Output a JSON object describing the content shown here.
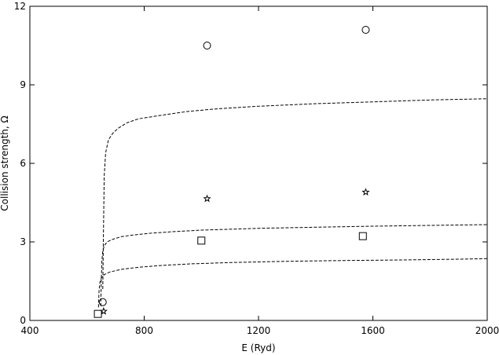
{
  "chart_data": {
    "type": "scatter",
    "title": "",
    "xlabel": "E (Ryd)",
    "ylabel": "Collision strength, Ω",
    "xlim": [
      400,
      2000
    ],
    "ylim": [
      0,
      12
    ],
    "x_ticks": [
      400,
      800,
      1200,
      1600,
      2000
    ],
    "y_ticks": [
      0,
      3,
      6,
      9,
      12
    ],
    "x_tick_labels": [
      "400",
      "800",
      "1200",
      "1600",
      "2000"
    ],
    "y_tick_labels": [
      "0",
      "3",
      "6",
      "9",
      "12"
    ],
    "grid": false,
    "legend": "none",
    "line_style": "dashed",
    "line_color": "#000000",
    "marker_color": "#000000",
    "curves": [
      {
        "x": [
          655,
          657,
          660,
          665,
          675,
          690,
          710,
          740,
          780,
          850,
          950,
          1050,
          1200,
          1400,
          1600,
          1800,
          2000
        ],
        "y": [
          1.2,
          3.0,
          5.5,
          6.4,
          6.9,
          7.15,
          7.35,
          7.55,
          7.7,
          7.82,
          7.98,
          8.08,
          8.18,
          8.28,
          8.35,
          8.42,
          8.47
        ]
      },
      {
        "x": [
          648,
          650,
          652,
          655,
          660,
          670,
          690,
          720,
          760,
          820,
          900,
          1000,
          1200,
          1400,
          1600,
          1800,
          2000
        ],
        "y": [
          0.55,
          1.5,
          2.3,
          2.65,
          2.85,
          3.0,
          3.1,
          3.2,
          3.26,
          3.33,
          3.39,
          3.45,
          3.52,
          3.56,
          3.6,
          3.63,
          3.66
        ]
      },
      {
        "x": [
          640,
          642,
          645,
          650,
          660,
          680,
          720,
          780,
          860,
          960,
          1100,
          1300,
          1500,
          1700,
          1900,
          2000
        ],
        "y": [
          0.5,
          1.1,
          1.45,
          1.62,
          1.75,
          1.85,
          1.95,
          2.03,
          2.1,
          2.16,
          2.21,
          2.26,
          2.29,
          2.31,
          2.34,
          2.36
        ]
      }
    ],
    "markers": [
      {
        "shape": "circle",
        "points": [
          [
            655,
            0.7
          ],
          [
            1020,
            10.5
          ],
          [
            1575,
            11.1
          ]
        ]
      },
      {
        "shape": "star",
        "points": [
          [
            658,
            0.35
          ],
          [
            1020,
            4.65
          ],
          [
            1575,
            4.9
          ]
        ]
      },
      {
        "shape": "square",
        "points": [
          [
            638,
            0.25
          ],
          [
            1000,
            3.05
          ],
          [
            1565,
            3.22
          ]
        ]
      }
    ]
  }
}
